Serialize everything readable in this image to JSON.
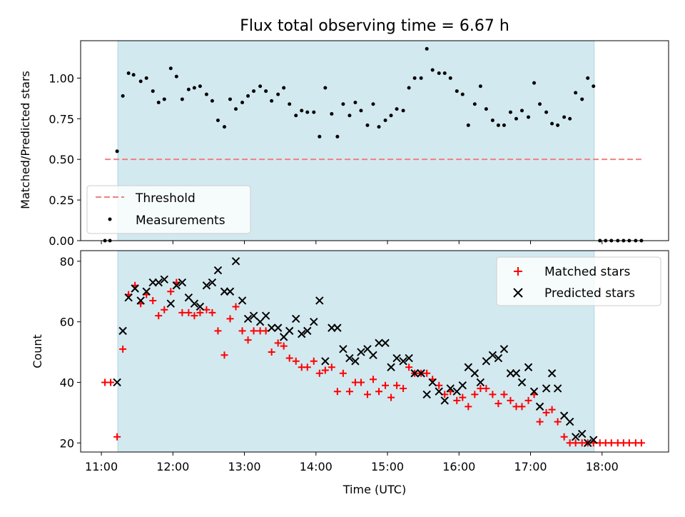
{
  "title": "Flux total observing time = 6.67 h",
  "colors": {
    "shade": "#d3e9f0",
    "shade_edge": "#a9d7e1",
    "threshold": "#f08080",
    "measurements": "#000000",
    "matched": "#ff0000",
    "predicted": "#000000"
  },
  "chart_data": [
    {
      "type": "scatter",
      "ylabel": "Matched/Predicted stars",
      "xlabel": "",
      "ylim": [
        0,
        1.23
      ],
      "yticks": [
        0.0,
        0.25,
        0.5,
        0.75,
        1.0
      ],
      "ytick_labels": [
        "0.00",
        "0.25",
        "0.50",
        "0.75",
        "1.00"
      ],
      "shaded_span": [
        11.23,
        17.89
      ],
      "threshold": {
        "value": 0.5,
        "x_range": [
          11.05,
          18.55
        ]
      },
      "legend": {
        "position": "lower-left",
        "entries": [
          "Threshold",
          "Measurements"
        ]
      },
      "measurements": [
        [
          11.05,
          0.0
        ],
        [
          11.12,
          0.0
        ],
        [
          11.22,
          0.55
        ],
        [
          11.3,
          0.89
        ],
        [
          11.38,
          1.03
        ],
        [
          11.45,
          1.02
        ],
        [
          11.55,
          0.98
        ],
        [
          11.63,
          1.0
        ],
        [
          11.72,
          0.92
        ],
        [
          11.8,
          0.85
        ],
        [
          11.88,
          0.87
        ],
        [
          11.97,
          1.06
        ],
        [
          12.05,
          1.01
        ],
        [
          12.13,
          0.87
        ],
        [
          12.22,
          0.93
        ],
        [
          12.3,
          0.94
        ],
        [
          12.38,
          0.95
        ],
        [
          12.47,
          0.9
        ],
        [
          12.55,
          0.86
        ],
        [
          12.63,
          0.74
        ],
        [
          12.72,
          0.7
        ],
        [
          12.8,
          0.87
        ],
        [
          12.88,
          0.81
        ],
        [
          12.97,
          0.85
        ],
        [
          13.05,
          0.89
        ],
        [
          13.13,
          0.92
        ],
        [
          13.22,
          0.95
        ],
        [
          13.3,
          0.92
        ],
        [
          13.38,
          0.86
        ],
        [
          13.47,
          0.9
        ],
        [
          13.55,
          0.94
        ],
        [
          13.63,
          0.84
        ],
        [
          13.72,
          0.77
        ],
        [
          13.8,
          0.8
        ],
        [
          13.88,
          0.79
        ],
        [
          13.97,
          0.79
        ],
        [
          14.05,
          0.64
        ],
        [
          14.13,
          0.94
        ],
        [
          14.22,
          0.78
        ],
        [
          14.3,
          0.64
        ],
        [
          14.38,
          0.84
        ],
        [
          14.47,
          0.77
        ],
        [
          14.55,
          0.85
        ],
        [
          14.63,
          0.8
        ],
        [
          14.72,
          0.71
        ],
        [
          14.8,
          0.84
        ],
        [
          14.88,
          0.7
        ],
        [
          14.97,
          0.74
        ],
        [
          15.05,
          0.77
        ],
        [
          15.13,
          0.81
        ],
        [
          15.22,
          0.8
        ],
        [
          15.3,
          0.94
        ],
        [
          15.38,
          1.0
        ],
        [
          15.47,
          1.0
        ],
        [
          15.55,
          1.18
        ],
        [
          15.63,
          1.05
        ],
        [
          15.72,
          1.03
        ],
        [
          15.8,
          1.03
        ],
        [
          15.88,
          1.0
        ],
        [
          15.97,
          0.92
        ],
        [
          16.05,
          0.9
        ],
        [
          16.13,
          0.71
        ],
        [
          16.22,
          0.84
        ],
        [
          16.3,
          0.95
        ],
        [
          16.38,
          0.81
        ],
        [
          16.47,
          0.74
        ],
        [
          16.55,
          0.71
        ],
        [
          16.63,
          0.71
        ],
        [
          16.72,
          0.79
        ],
        [
          16.8,
          0.75
        ],
        [
          16.88,
          0.8
        ],
        [
          16.97,
          0.76
        ],
        [
          17.05,
          0.97
        ],
        [
          17.13,
          0.84
        ],
        [
          17.22,
          0.79
        ],
        [
          17.3,
          0.72
        ],
        [
          17.38,
          0.71
        ],
        [
          17.47,
          0.76
        ],
        [
          17.55,
          0.75
        ],
        [
          17.63,
          0.91
        ],
        [
          17.72,
          0.87
        ],
        [
          17.8,
          1.0
        ],
        [
          17.88,
          0.95
        ],
        [
          17.97,
          0.0
        ],
        [
          18.05,
          0.0
        ],
        [
          18.13,
          0.0
        ],
        [
          18.22,
          0.0
        ],
        [
          18.3,
          0.0
        ],
        [
          18.38,
          0.0
        ],
        [
          18.47,
          0.0
        ],
        [
          18.55,
          0.0
        ]
      ]
    },
    {
      "type": "scatter",
      "ylabel": "Count",
      "xlabel": "Time (UTC)",
      "xlim": [
        10.71,
        18.93
      ],
      "ylim": [
        17,
        83.5
      ],
      "yticks": [
        20,
        40,
        60,
        80
      ],
      "ytick_labels": [
        "20",
        "40",
        "60",
        "80"
      ],
      "xticks": [
        11,
        12,
        13,
        14,
        15,
        16,
        17,
        18
      ],
      "xtick_labels": [
        "11:00",
        "12:00",
        "13:00",
        "14:00",
        "15:00",
        "16:00",
        "17:00",
        "18:00"
      ],
      "shaded_span": [
        11.23,
        17.89
      ],
      "legend": {
        "position": "top-right",
        "entries": [
          "Matched stars",
          "Predicted stars"
        ]
      },
      "series": [
        {
          "name": "Matched stars",
          "marker": "plus",
          "points": [
            [
              11.05,
              40
            ],
            [
              11.13,
              40
            ],
            [
              11.22,
              22
            ],
            [
              11.3,
              51
            ],
            [
              11.38,
              69
            ],
            [
              11.47,
              72
            ],
            [
              11.55,
              66
            ],
            [
              11.63,
              69
            ],
            [
              11.72,
              67
            ],
            [
              11.8,
              62
            ],
            [
              11.88,
              64
            ],
            [
              11.97,
              70
            ],
            [
              12.05,
              73
            ],
            [
              12.13,
              63
            ],
            [
              12.22,
              63
            ],
            [
              12.3,
              62
            ],
            [
              12.38,
              63
            ],
            [
              12.47,
              64
            ],
            [
              12.55,
              63
            ],
            [
              12.63,
              57
            ],
            [
              12.72,
              49
            ],
            [
              12.8,
              61
            ],
            [
              12.88,
              65
            ],
            [
              12.97,
              57
            ],
            [
              13.05,
              54
            ],
            [
              13.13,
              57
            ],
            [
              13.22,
              57
            ],
            [
              13.3,
              57
            ],
            [
              13.38,
              50
            ],
            [
              13.47,
              53
            ],
            [
              13.55,
              52
            ],
            [
              13.63,
              48
            ],
            [
              13.72,
              47
            ],
            [
              13.8,
              45
            ],
            [
              13.88,
              45
            ],
            [
              13.97,
              47
            ],
            [
              14.05,
              43
            ],
            [
              14.13,
              44
            ],
            [
              14.22,
              45
            ],
            [
              14.3,
              37
            ],
            [
              14.38,
              43
            ],
            [
              14.47,
              37
            ],
            [
              14.55,
              40
            ],
            [
              14.63,
              40
            ],
            [
              14.72,
              36
            ],
            [
              14.8,
              41
            ],
            [
              14.88,
              37
            ],
            [
              14.97,
              39
            ],
            [
              15.05,
              35
            ],
            [
              15.13,
              39
            ],
            [
              15.22,
              38
            ],
            [
              15.3,
              45
            ],
            [
              15.38,
              43
            ],
            [
              15.47,
              43
            ],
            [
              15.55,
              43
            ],
            [
              15.63,
              41
            ],
            [
              15.72,
              39
            ],
            [
              15.8,
              36
            ],
            [
              15.88,
              37
            ],
            [
              15.97,
              34
            ],
            [
              16.05,
              35
            ],
            [
              16.13,
              32
            ],
            [
              16.22,
              36
            ],
            [
              16.3,
              38
            ],
            [
              16.38,
              38
            ],
            [
              16.47,
              36
            ],
            [
              16.55,
              33
            ],
            [
              16.63,
              36
            ],
            [
              16.72,
              34
            ],
            [
              16.8,
              32
            ],
            [
              16.88,
              32
            ],
            [
              16.97,
              34
            ],
            [
              17.05,
              36
            ],
            [
              17.13,
              27
            ],
            [
              17.22,
              30
            ],
            [
              17.3,
              31
            ],
            [
              17.38,
              27
            ],
            [
              17.47,
              22
            ],
            [
              17.55,
              20
            ],
            [
              17.63,
              20
            ],
            [
              17.72,
              20
            ],
            [
              17.8,
              20
            ],
            [
              17.88,
              20
            ],
            [
              17.97,
              20
            ],
            [
              18.05,
              20
            ],
            [
              18.13,
              20
            ],
            [
              18.22,
              20
            ],
            [
              18.3,
              20
            ],
            [
              18.38,
              20
            ],
            [
              18.47,
              20
            ],
            [
              18.55,
              20
            ]
          ]
        },
        {
          "name": "Predicted stars",
          "marker": "x",
          "points": [
            [
              11.22,
              40
            ],
            [
              11.3,
              57
            ],
            [
              11.38,
              68
            ],
            [
              11.47,
              71
            ],
            [
              11.55,
              67
            ],
            [
              11.63,
              70
            ],
            [
              11.72,
              73
            ],
            [
              11.8,
              73
            ],
            [
              11.88,
              74
            ],
            [
              11.97,
              66
            ],
            [
              12.05,
              72
            ],
            [
              12.13,
              73
            ],
            [
              12.22,
              68
            ],
            [
              12.3,
              66
            ],
            [
              12.38,
              65
            ],
            [
              12.47,
              72
            ],
            [
              12.55,
              73
            ],
            [
              12.63,
              77
            ],
            [
              12.72,
              70
            ],
            [
              12.8,
              70
            ],
            [
              12.88,
              80
            ],
            [
              12.97,
              67
            ],
            [
              13.05,
              61
            ],
            [
              13.13,
              62
            ],
            [
              13.22,
              60
            ],
            [
              13.3,
              62
            ],
            [
              13.38,
              58
            ],
            [
              13.47,
              58
            ],
            [
              13.55,
              55
            ],
            [
              13.63,
              57
            ],
            [
              13.72,
              61
            ],
            [
              13.8,
              56
            ],
            [
              13.88,
              57
            ],
            [
              13.97,
              60
            ],
            [
              14.05,
              67
            ],
            [
              14.13,
              47
            ],
            [
              14.22,
              58
            ],
            [
              14.3,
              58
            ],
            [
              14.38,
              51
            ],
            [
              14.47,
              48
            ],
            [
              14.55,
              47
            ],
            [
              14.63,
              50
            ],
            [
              14.72,
              51
            ],
            [
              14.8,
              49
            ],
            [
              14.88,
              53
            ],
            [
              14.97,
              53
            ],
            [
              15.05,
              45
            ],
            [
              15.13,
              48
            ],
            [
              15.22,
              47
            ],
            [
              15.3,
              48
            ],
            [
              15.38,
              43
            ],
            [
              15.47,
              43
            ],
            [
              15.55,
              36
            ],
            [
              15.63,
              40
            ],
            [
              15.72,
              37
            ],
            [
              15.8,
              34
            ],
            [
              15.88,
              38
            ],
            [
              15.97,
              37
            ],
            [
              16.05,
              39
            ],
            [
              16.13,
              45
            ],
            [
              16.22,
              43
            ],
            [
              16.3,
              40
            ],
            [
              16.38,
              47
            ],
            [
              16.47,
              49
            ],
            [
              16.55,
              48
            ],
            [
              16.63,
              51
            ],
            [
              16.72,
              43
            ],
            [
              16.8,
              43
            ],
            [
              16.88,
              40
            ],
            [
              16.97,
              45
            ],
            [
              17.05,
              37
            ],
            [
              17.13,
              32
            ],
            [
              17.22,
              38
            ],
            [
              17.3,
              43
            ],
            [
              17.38,
              38
            ],
            [
              17.47,
              29
            ],
            [
              17.55,
              27
            ],
            [
              17.63,
              22
            ],
            [
              17.72,
              23
            ],
            [
              17.8,
              20
            ],
            [
              17.88,
              21
            ]
          ]
        }
      ]
    }
  ]
}
